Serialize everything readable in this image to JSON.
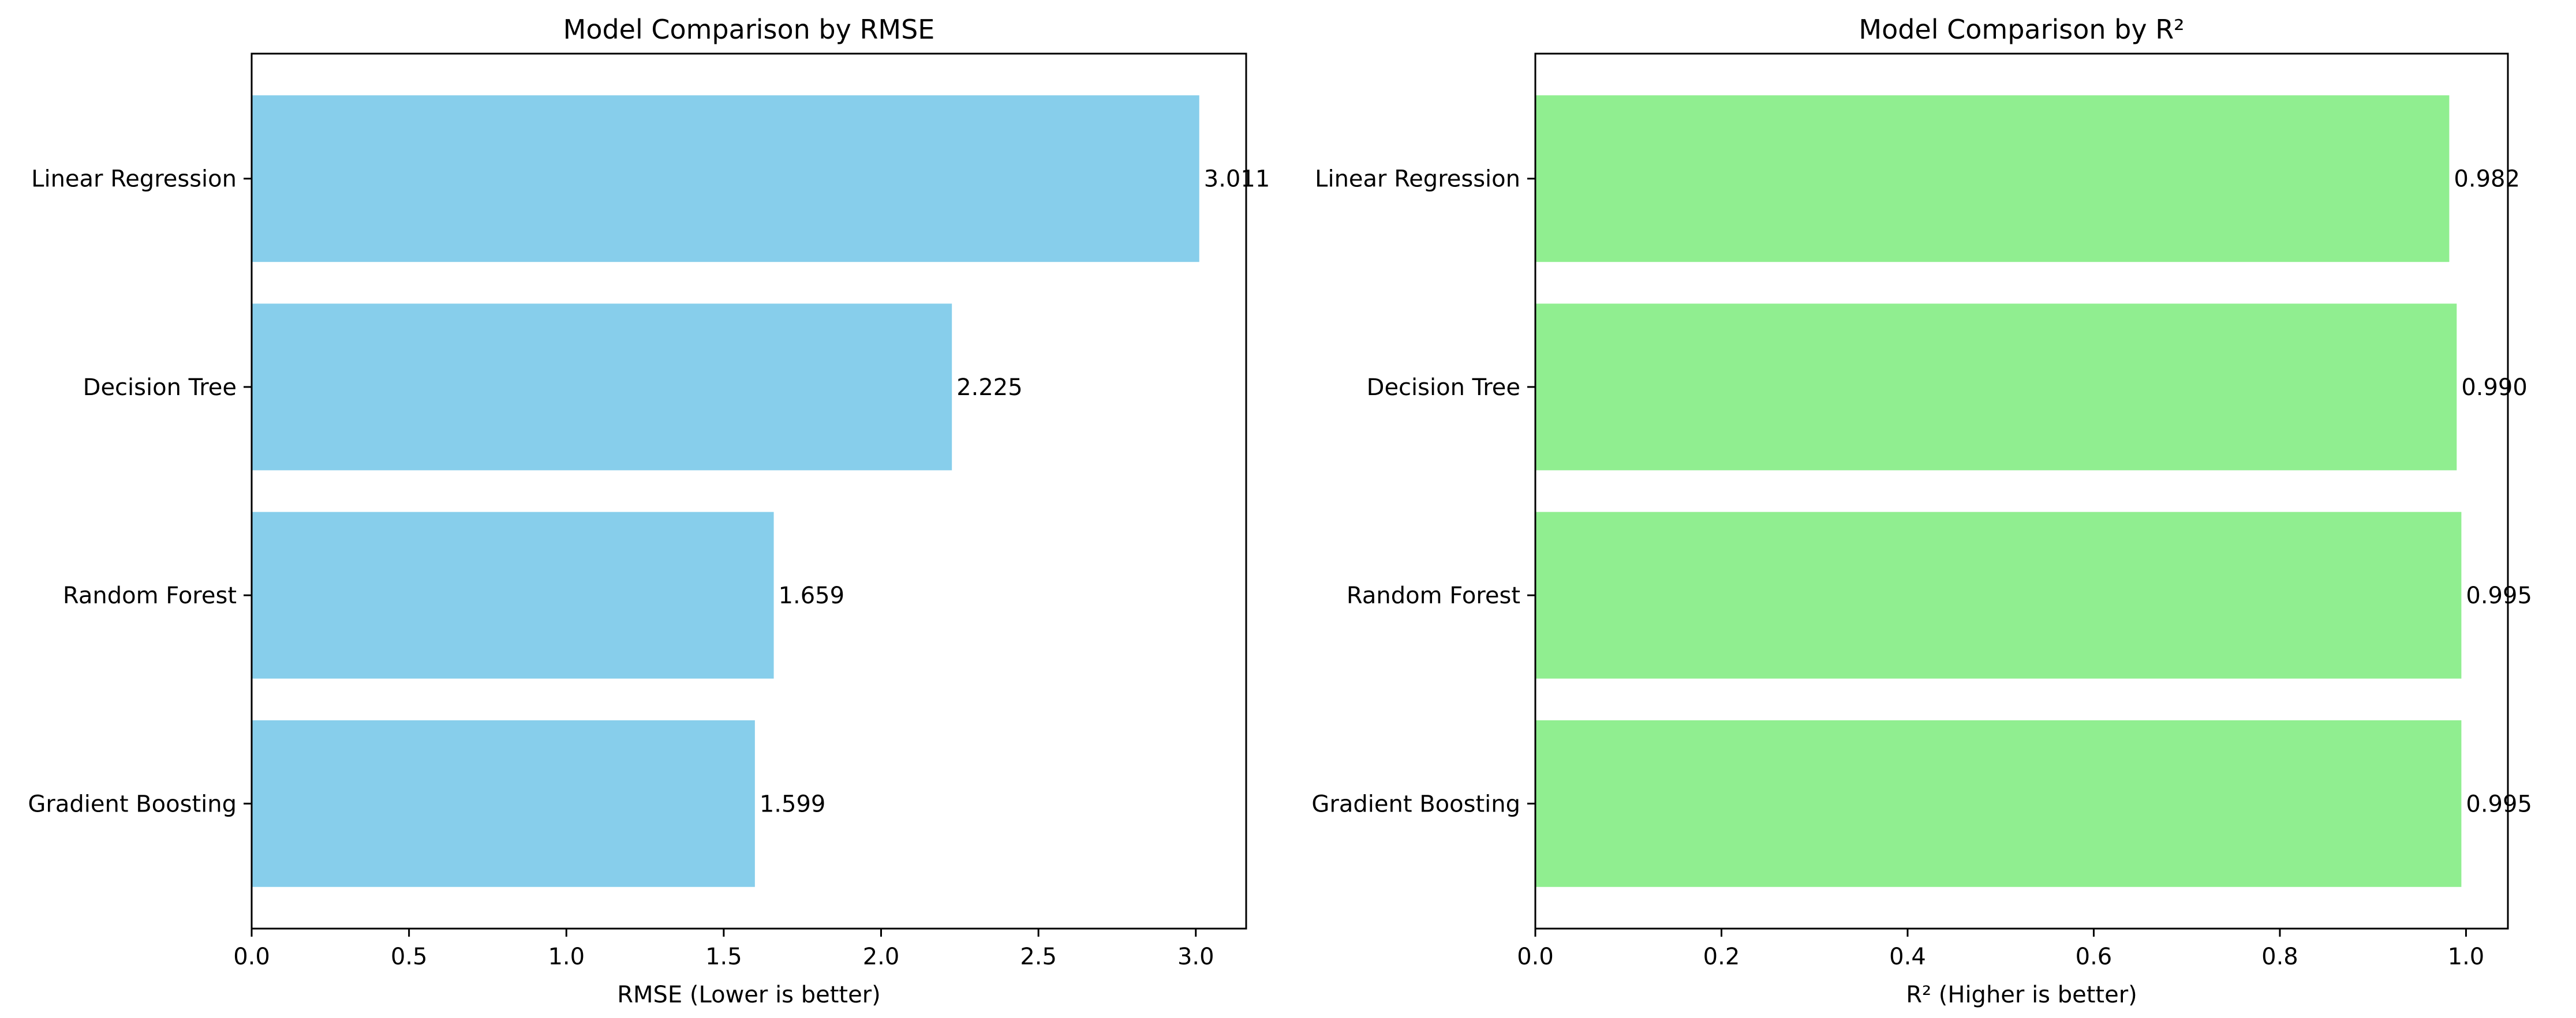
{
  "chart_data": [
    {
      "type": "bar",
      "orientation": "horizontal",
      "title": "Model Comparison by RMSE",
      "xlabel": "RMSE (Lower is better)",
      "ylabel": "",
      "categories": [
        "Linear Regression",
        "Decision Tree",
        "Random Forest",
        "Gradient Boosting"
      ],
      "values": [
        3.011,
        2.225,
        1.659,
        1.599
      ],
      "data_labels": [
        "3.011",
        "2.225",
        "1.659",
        "1.599"
      ],
      "xlim": [
        0,
        3.16
      ],
      "xticks": [
        0,
        0.5,
        1.0,
        1.5,
        2.0,
        2.5,
        3.0
      ],
      "xtick_labels": [
        "0.0",
        "0.5",
        "1.0",
        "1.5",
        "2.0",
        "2.5",
        "3.0"
      ],
      "color": "#87CEEB",
      "grid": false,
      "legend": "none"
    },
    {
      "type": "bar",
      "orientation": "horizontal",
      "title": "Model Comparison by R²",
      "xlabel": "R² (Higher is better)",
      "ylabel": "",
      "categories": [
        "Linear Regression",
        "Decision Tree",
        "Random Forest",
        "Gradient Boosting"
      ],
      "values": [
        0.982,
        0.99,
        0.995,
        0.995
      ],
      "data_labels": [
        "0.982",
        "0.990",
        "0.995",
        "0.995"
      ],
      "xlim": [
        0,
        1.045
      ],
      "xticks": [
        0,
        0.2,
        0.4,
        0.6,
        0.8,
        1.0
      ],
      "xtick_labels": [
        "0.0",
        "0.2",
        "0.4",
        "0.6",
        "0.8",
        "1.0"
      ],
      "color": "#90EE90",
      "grid": false,
      "legend": "none"
    }
  ]
}
